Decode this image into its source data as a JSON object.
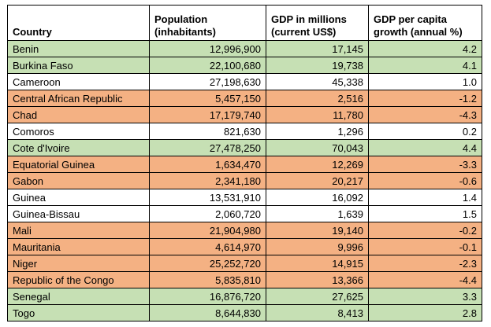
{
  "table": {
    "headers": {
      "country": "Country",
      "population_line1": "Population",
      "population_line2": "(inhabitants)",
      "gdp_line1": "GDP in millions",
      "gdp_line2": "(current US$)",
      "growth_line1": "GDP per capita",
      "growth_line2": "growth (annual %)"
    },
    "colors": {
      "green": "#c6e0b4",
      "orange": "#f4b183",
      "white": "#ffffff"
    },
    "rows": [
      {
        "country": "Benin",
        "population": "12,996,900",
        "gdp": "17,145",
        "growth": "4.2",
        "color": "green"
      },
      {
        "country": "Burkina Faso",
        "population": "22,100,680",
        "gdp": "19,738",
        "growth": "4.1",
        "color": "green"
      },
      {
        "country": "Cameroon",
        "population": "27,198,630",
        "gdp": "45,338",
        "growth": "1.0",
        "color": "white"
      },
      {
        "country": "Central African Republic",
        "population": "5,457,150",
        "gdp": "2,516",
        "growth": "-1.2",
        "color": "orange"
      },
      {
        "country": "Chad",
        "population": "17,179,740",
        "gdp": "11,780",
        "growth": "-4.3",
        "color": "orange"
      },
      {
        "country": "Comoros",
        "population": "821,630",
        "gdp": "1,296",
        "growth": "0.2",
        "color": "white"
      },
      {
        "country": "Cote d'Ivoire",
        "population": "27,478,250",
        "gdp": "70,043",
        "growth": "4.4",
        "color": "green"
      },
      {
        "country": "Equatorial Guinea",
        "population": "1,634,470",
        "gdp": "12,269",
        "growth": "-3.3",
        "color": "orange"
      },
      {
        "country": "Gabon",
        "population": "2,341,180",
        "gdp": "20,217",
        "growth": "-0.6",
        "color": "orange"
      },
      {
        "country": "Guinea",
        "population": "13,531,910",
        "gdp": "16,092",
        "growth": "1.4",
        "color": "white"
      },
      {
        "country": "Guinea-Bissau",
        "population": "2,060,720",
        "gdp": "1,639",
        "growth": "1.5",
        "color": "white"
      },
      {
        "country": "Mali",
        "population": "21,904,980",
        "gdp": "19,140",
        "growth": "-0.2",
        "color": "orange"
      },
      {
        "country": "Mauritania",
        "population": "4,614,970",
        "gdp": "9,996",
        "growth": "-0.1",
        "color": "orange"
      },
      {
        "country": "Niger",
        "population": "25,252,720",
        "gdp": "14,915",
        "growth": "-2.3",
        "color": "orange"
      },
      {
        "country": "Republic of the Congo",
        "population": "5,835,810",
        "gdp": "13,366",
        "growth": "-4.4",
        "color": "orange"
      },
      {
        "country": "Senegal",
        "population": "16,876,720",
        "gdp": "27,625",
        "growth": "3.3",
        "color": "green"
      },
      {
        "country": "Togo",
        "population": "8,644,830",
        "gdp": "8,413",
        "growth": "2.8",
        "color": "green"
      }
    ]
  }
}
